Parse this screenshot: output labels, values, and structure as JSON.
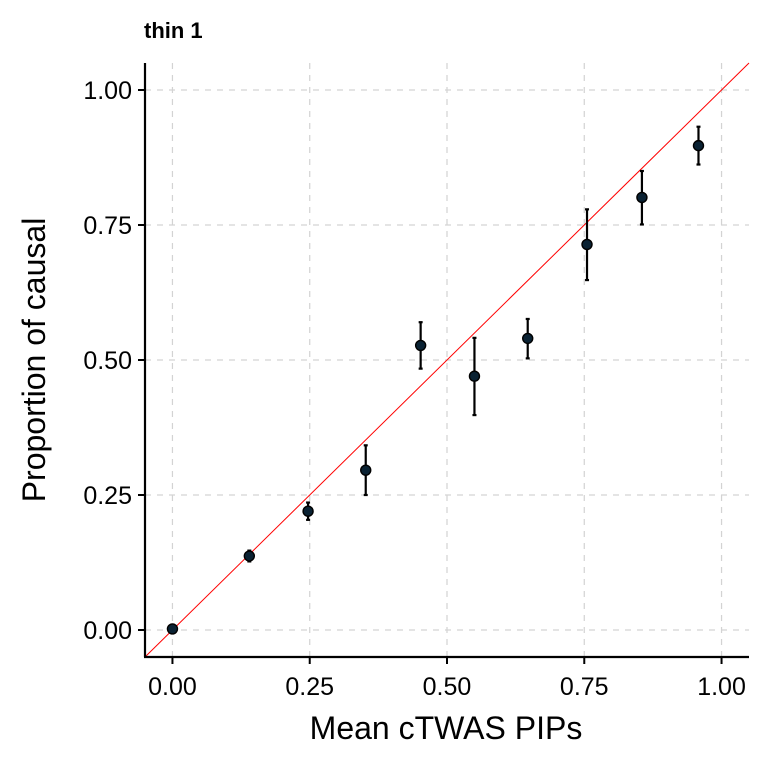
{
  "chart_data": {
    "type": "scatter",
    "title": "thin 1",
    "xlabel": "Mean cTWAS PIPs",
    "ylabel": "Proportion of causal",
    "xlim": [
      -0.05,
      1.05
    ],
    "ylim": [
      -0.05,
      1.05
    ],
    "xticks": [
      0,
      0.25,
      0.5,
      0.75,
      1
    ],
    "xtick_labels": [
      "0.00",
      "0.25",
      "0.50",
      "0.75",
      "1.00"
    ],
    "yticks": [
      0,
      0.25,
      0.5,
      0.75,
      1
    ],
    "ytick_labels": [
      "0.00",
      "0.25",
      "0.50",
      "0.75",
      "1.00"
    ],
    "grid": true,
    "reference_line": {
      "type": "y=x",
      "color": "#ff0000"
    },
    "point_color": "#0a2233",
    "points": [
      {
        "x": 0.0,
        "y": 0.002,
        "ymin": 0.0,
        "ymax": 0.004
      },
      {
        "x": 0.14,
        "y": 0.137,
        "ymin": 0.127,
        "ymax": 0.147
      },
      {
        "x": 0.247,
        "y": 0.22,
        "ymin": 0.204,
        "ymax": 0.236
      },
      {
        "x": 0.352,
        "y": 0.296,
        "ymin": 0.25,
        "ymax": 0.342
      },
      {
        "x": 0.452,
        "y": 0.527,
        "ymin": 0.484,
        "ymax": 0.57
      },
      {
        "x": 0.55,
        "y": 0.47,
        "ymin": 0.398,
        "ymax": 0.541
      },
      {
        "x": 0.647,
        "y": 0.54,
        "ymin": 0.503,
        "ymax": 0.576
      },
      {
        "x": 0.755,
        "y": 0.714,
        "ymin": 0.648,
        "ymax": 0.779
      },
      {
        "x": 0.855,
        "y": 0.801,
        "ymin": 0.751,
        "ymax": 0.85
      },
      {
        "x": 0.958,
        "y": 0.897,
        "ymin": 0.862,
        "ymax": 0.932
      }
    ]
  }
}
